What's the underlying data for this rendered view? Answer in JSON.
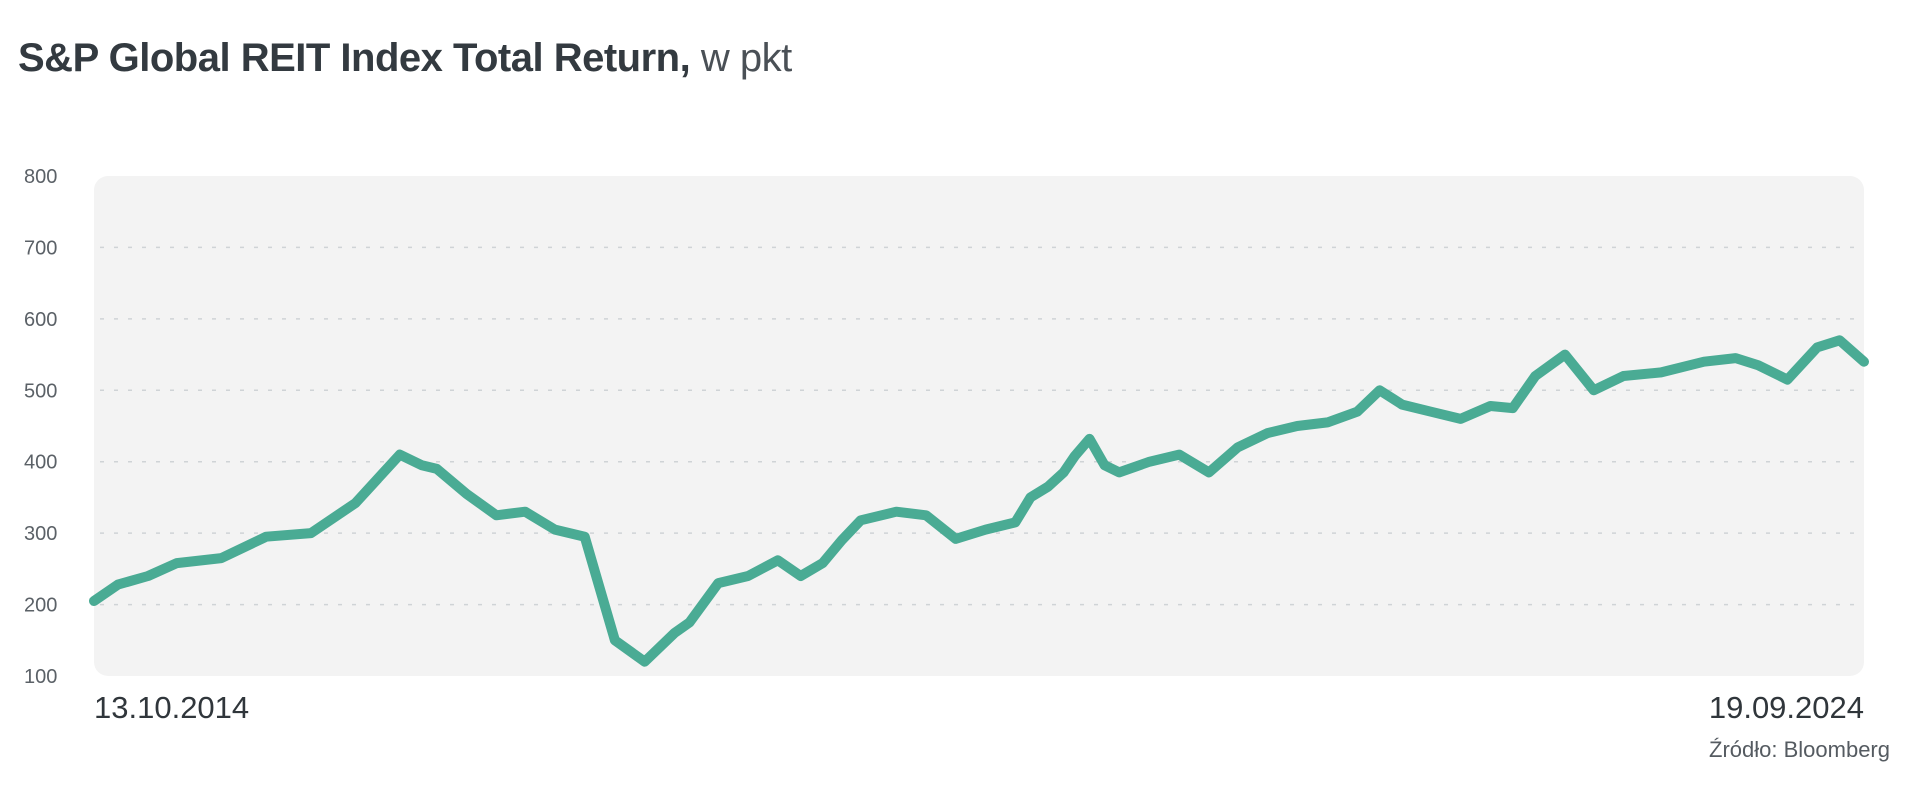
{
  "title": {
    "main": "S&P Global REIT Index Total Return,",
    "unit": "w pkt"
  },
  "source": "Źródło: Bloomberg",
  "colors": {
    "line": "#4aab94",
    "plot_bg": "#f3f3f3",
    "grid": "#cfd3d6"
  },
  "chart_data": {
    "type": "line",
    "title": "S&P Global REIT Index Total Return, w pkt",
    "xlabel": "",
    "ylabel": "",
    "x_tick_labels": [
      "13.10.2014",
      "19.09.2024"
    ],
    "x_range": [
      "2014-10-13",
      "2024-09-19"
    ],
    "ylim": [
      100,
      800
    ],
    "y_ticks": [
      100,
      200,
      300,
      400,
      500,
      600,
      700,
      800
    ],
    "grid": "horizontal dashed",
    "series": [
      {
        "x": [
          "2014-10-13",
          "2014-12-01",
          "2015-02-01",
          "2015-04-01",
          "2015-07-01",
          "2015-10-01",
          "2016-01-01",
          "2016-04-01",
          "2016-07-01",
          "2016-08-15",
          "2016-09-15",
          "2016-11-15",
          "2017-01-15",
          "2017-03-15",
          "2017-05-15",
          "2017-07-15",
          "2017-09-15",
          "2017-11-15",
          "2018-01-15",
          "2018-02-15",
          "2018-04-15",
          "2018-06-15",
          "2018-08-15",
          "2018-10-01",
          "2018-11-15",
          "2018-12-24",
          "2019-02-01",
          "2019-04-15",
          "2019-06-15",
          "2019-08-15",
          "2019-10-15",
          "2019-12-15",
          "2020-01-15",
          "2020-02-20",
          "2020-03-23",
          "2020-04-15",
          "2020-05-15",
          "2020-06-15",
          "2020-07-15",
          "2020-09-15",
          "2020-11-15",
          "2021-01-15",
          "2021-03-15",
          "2021-05-15",
          "2021-07-15",
          "2021-09-15",
          "2021-11-15",
          "2021-12-31",
          "2022-02-15",
          "2022-04-15",
          "2022-06-15",
          "2022-08-15",
          "2022-09-30",
          "2022-11-15",
          "2023-01-15",
          "2023-03-15",
          "2023-05-15",
          "2023-07-31",
          "2023-10-27",
          "2023-12-31",
          "2024-02-15",
          "2024-04-15",
          "2024-06-15",
          "2024-07-31",
          "2024-09-19"
        ],
        "y": [
          205,
          228,
          240,
          258,
          265,
          295,
          300,
          342,
          410,
          395,
          390,
          355,
          325,
          330,
          305,
          295,
          150,
          120,
          160,
          175,
          230,
          240,
          262,
          240,
          258,
          290,
          318,
          330,
          325,
          292,
          305,
          315,
          350,
          365,
          385,
          408,
          432,
          395,
          385,
          400,
          410,
          385,
          420,
          440,
          450,
          455,
          470,
          500,
          480,
          470,
          460,
          478,
          475,
          520,
          550,
          500,
          520,
          525,
          540,
          545,
          535,
          515,
          560,
          570,
          540
        ]
      }
    ]
  }
}
